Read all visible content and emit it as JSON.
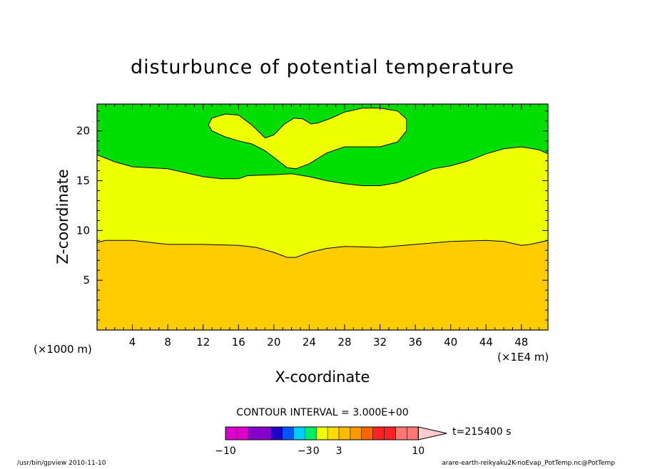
{
  "chart_data": {
    "type": "contour",
    "title": "disturbunce of potential temperature",
    "xlabel": "X-coordinate",
    "ylabel": "Z-coordinate",
    "x_scale_note": "(×1E4 m)",
    "y_scale_note": "(×1000 m)",
    "xlim": [
      0,
      51
    ],
    "ylim": [
      0,
      22.7
    ],
    "x_ticks": [
      4,
      8,
      12,
      16,
      20,
      24,
      28,
      32,
      36,
      40,
      44,
      48
    ],
    "y_ticks": [
      5,
      10,
      15,
      20
    ],
    "contour_interval": "CONTOUR INTERVAL = 3.000E+00",
    "time_label": "t=215400 s",
    "fill_colors": {
      "lower": "#ffcc00",
      "middle": "#eeff00",
      "upper": "#00dd00"
    },
    "contour_lines": {
      "lower_boundary": [
        [
          0,
          8.8
        ],
        [
          1,
          9.0
        ],
        [
          4,
          9.0
        ],
        [
          6,
          8.8
        ],
        [
          8,
          8.6
        ],
        [
          12,
          8.6
        ],
        [
          16,
          8.5
        ],
        [
          18,
          8.3
        ],
        [
          20,
          7.8
        ],
        [
          21.5,
          7.3
        ],
        [
          22.5,
          7.3
        ],
        [
          24,
          7.8
        ],
        [
          26,
          8.2
        ],
        [
          28,
          8.4
        ],
        [
          32,
          8.3
        ],
        [
          36,
          8.6
        ],
        [
          40,
          8.9
        ],
        [
          44,
          9.0
        ],
        [
          46,
          8.9
        ],
        [
          48,
          8.5
        ],
        [
          49,
          8.6
        ],
        [
          51,
          9.0
        ]
      ],
      "upper_boundary": [
        [
          0,
          17.6
        ],
        [
          2,
          16.9
        ],
        [
          4,
          16.4
        ],
        [
          6,
          16.3
        ],
        [
          8,
          16.2
        ],
        [
          10,
          15.8
        ],
        [
          12,
          15.4
        ],
        [
          14,
          15.2
        ],
        [
          16,
          15.2
        ],
        [
          17,
          15.5
        ],
        [
          20,
          15.6
        ],
        [
          22,
          15.7
        ],
        [
          24,
          15.4
        ],
        [
          26,
          15.0
        ],
        [
          28,
          14.7
        ],
        [
          30,
          14.5
        ],
        [
          32,
          14.5
        ],
        [
          34,
          14.8
        ],
        [
          36,
          15.5
        ],
        [
          38,
          16.2
        ],
        [
          40,
          16.5
        ],
        [
          42,
          17.0
        ],
        [
          44,
          17.7
        ],
        [
          46,
          18.2
        ],
        [
          48,
          18.4
        ],
        [
          50,
          18.1
        ],
        [
          51,
          17.7
        ]
      ],
      "island": [
        [
          12.6,
          20.6
        ],
        [
          13.0,
          21.3
        ],
        [
          14.5,
          21.7
        ],
        [
          16.0,
          21.6
        ],
        [
          17.5,
          20.6
        ],
        [
          19.0,
          19.3
        ],
        [
          20.0,
          19.6
        ],
        [
          21.2,
          20.7
        ],
        [
          22.3,
          21.3
        ],
        [
          23.3,
          21.2
        ],
        [
          24.2,
          20.7
        ],
        [
          25.0,
          20.8
        ],
        [
          26.5,
          21.3
        ],
        [
          28.0,
          21.9
        ],
        [
          30.0,
          22.3
        ],
        [
          32.0,
          22.3
        ],
        [
          34.0,
          22.0
        ],
        [
          35.0,
          21.2
        ],
        [
          35.0,
          20.0
        ],
        [
          34.0,
          18.9
        ],
        [
          32.0,
          18.4
        ],
        [
          30.0,
          18.4
        ],
        [
          28.0,
          18.4
        ],
        [
          26.0,
          17.8
        ],
        [
          24.0,
          16.7
        ],
        [
          22.5,
          16.2
        ],
        [
          21.5,
          16.3
        ],
        [
          20.5,
          17.0
        ],
        [
          19.0,
          18.0
        ],
        [
          17.5,
          18.7
        ],
        [
          16.0,
          19.0
        ],
        [
          14.5,
          19.4
        ],
        [
          13.0,
          20.0
        ]
      ]
    },
    "colorbar": {
      "colors": [
        "#dd00cc",
        "#dd00cc",
        "#8800cc",
        "#8800cc",
        "#2200cc",
        "#0055ff",
        "#00ccff",
        "#00ee66",
        "#eeff00",
        "#ffdd00",
        "#ffbb00",
        "#ff9900",
        "#ff6600",
        "#ff2222",
        "#ff2222",
        "#ff7777",
        "#ff7777"
      ],
      "tip_color": "#ffcccc",
      "labels": [
        {
          "text": "−10",
          "index": 0
        },
        {
          "text": "−3",
          "index": 7
        },
        {
          "text": "0",
          "index": 8
        },
        {
          "text": "3",
          "index": 10
        },
        {
          "text": "10",
          "index": 17
        }
      ]
    }
  },
  "footer": {
    "left": "/usr/bin/gpview  2010-11-10",
    "right": "arare-earth-reikyaku2K-noEvap_PotTemp.nc@PotTemp"
  }
}
